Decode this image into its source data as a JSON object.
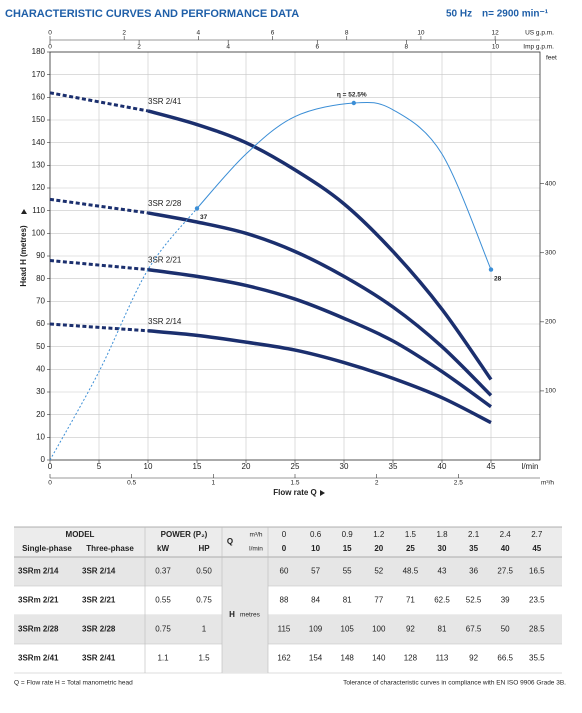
{
  "header": {
    "title": "CHARACTERISTIC CURVES AND PERFORMANCE DATA",
    "frequency": "50 Hz",
    "speed": "n= 2900 min⁻¹"
  },
  "chart_data": {
    "type": "line",
    "x_label": "Flow rate Q",
    "x_unit": "l/min",
    "xlim": [
      0,
      50
    ],
    "xticks": [
      0,
      5,
      10,
      15,
      20,
      25,
      30,
      35,
      40,
      45
    ],
    "y_label": "Head H (metres)",
    "ylim": [
      0,
      180
    ],
    "yticks": [
      0,
      10,
      20,
      30,
      40,
      50,
      60,
      70,
      80,
      90,
      100,
      110,
      120,
      130,
      140,
      150,
      160,
      170,
      180
    ],
    "grid": true,
    "x2_axis": {
      "unit": "m³/h",
      "lim": [
        0,
        3
      ],
      "ticks": [
        0,
        0.5,
        1,
        1.5,
        2,
        2.5
      ]
    },
    "us_gpm_axis": {
      "unit": "US g.p.m.",
      "lim": [
        0,
        13.21
      ],
      "ticks": [
        0,
        2,
        4,
        6,
        8,
        10,
        12
      ]
    },
    "imp_gpm_axis": {
      "unit": "Imp g.p.m.",
      "lim": [
        0,
        11
      ],
      "ticks": [
        0,
        2,
        4,
        6,
        8,
        10
      ]
    },
    "feet_axis": {
      "unit": "feet",
      "lim": [
        0,
        590.55
      ],
      "ticks": [
        100,
        200,
        300,
        400
      ]
    },
    "x": [
      0,
      10,
      15,
      20,
      25,
      30,
      35,
      40,
      45
    ],
    "dashed_until": 1,
    "series": [
      {
        "name": "3SR 2/41",
        "color": "#1b2f6e",
        "values": [
          162,
          154,
          148,
          140,
          128,
          113,
          92,
          66.5,
          35.5
        ]
      },
      {
        "name": "3SR 2/28",
        "color": "#1b2f6e",
        "values": [
          115,
          109,
          105,
          100,
          92,
          81,
          67.5,
          50,
          28.5
        ]
      },
      {
        "name": "3SR 2/21",
        "color": "#1b2f6e",
        "values": [
          88,
          84,
          81,
          77,
          71,
          62.5,
          52.5,
          39,
          23.5
        ]
      },
      {
        "name": "3SR 2/14",
        "color": "#1b2f6e",
        "values": [
          60,
          57,
          55,
          52,
          48.5,
          43,
          36,
          27.5,
          16.5
        ]
      }
    ],
    "y2lim": [
      0,
      60
    ],
    "efficiency": {
      "axis": "y2",
      "color": "#3b8ed6",
      "dashed_until": 3,
      "x": [
        0,
        5,
        10,
        15,
        20,
        25,
        31,
        35,
        40,
        45
      ],
      "values": [
        0,
        13,
        28,
        37,
        45,
        50.5,
        52.5,
        51.5,
        45,
        28
      ],
      "value_labels": [
        null,
        null,
        null,
        "37",
        null,
        null,
        "η = 52.5%",
        null,
        null,
        "28"
      ]
    }
  },
  "table": {
    "model_header": "MODEL",
    "power_header": "POWER (P₂)",
    "columns": [
      "Single-phase",
      "Three-phase",
      "kW",
      "HP"
    ],
    "q_label": "Q",
    "q_units": [
      "m³/h",
      "l/min"
    ],
    "q_m3h": [
      "0",
      "0.6",
      "0.9",
      "1.2",
      "1.5",
      "1.8",
      "2.1",
      "2.4",
      "2.7"
    ],
    "q_lmin": [
      "0",
      "10",
      "15",
      "20",
      "25",
      "30",
      "35",
      "40",
      "45"
    ],
    "h_label": "H",
    "h_unit": "metres",
    "rows": [
      {
        "single": "3SRm 2/14",
        "three": "3SR 2/14",
        "kw": "0.37",
        "hp": "0.50",
        "h": [
          "60",
          "57",
          "55",
          "52",
          "48.5",
          "43",
          "36",
          "27.5",
          "16.5"
        ]
      },
      {
        "single": "3SRm 2/21",
        "three": "3SR 2/21",
        "kw": "0.55",
        "hp": "0.75",
        "h": [
          "88",
          "84",
          "81",
          "77",
          "71",
          "62.5",
          "52.5",
          "39",
          "23.5"
        ]
      },
      {
        "single": "3SRm 2/28",
        "three": "3SR 2/28",
        "kw": "0.75",
        "hp": "1",
        "h": [
          "115",
          "109",
          "105",
          "100",
          "92",
          "81",
          "67.5",
          "50",
          "28.5"
        ]
      },
      {
        "single": "3SRm 2/41",
        "three": "3SR 2/41",
        "kw": "1.1",
        "hp": "1.5",
        "h": [
          "162",
          "154",
          "148",
          "140",
          "128",
          "113",
          "92",
          "66.5",
          "35.5"
        ]
      }
    ]
  },
  "footer": {
    "left": "Q = Flow rate   H = Total manometric head",
    "right": "Tolerance of characteristic curves in compliance with EN ISO 9906 Grade 3B."
  }
}
